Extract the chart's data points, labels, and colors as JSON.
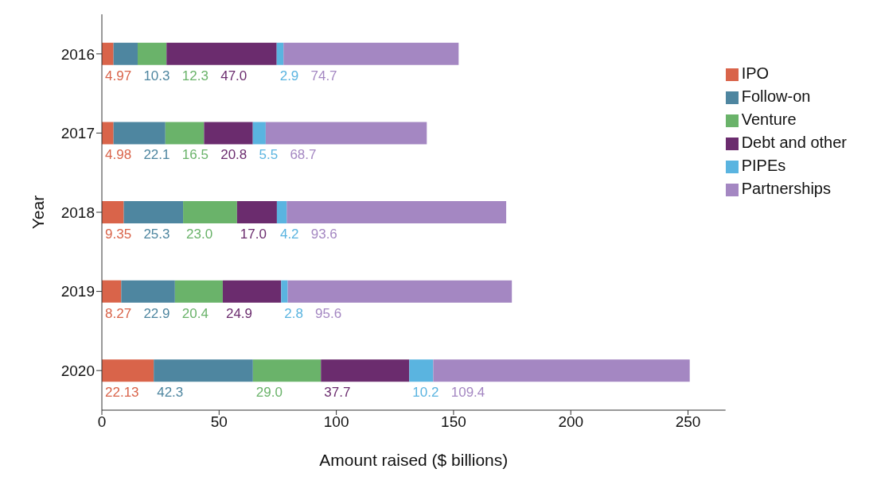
{
  "chart_data": {
    "type": "bar",
    "orientation": "horizontal",
    "stacked": true,
    "xlabel": "Amount raised ($ billions)",
    "ylabel": "Year",
    "categories": [
      "2016",
      "2017",
      "2018",
      "2019",
      "2020"
    ],
    "series": [
      {
        "name": "IPO",
        "color": "#d9644a",
        "values": [
          4.97,
          4.98,
          9.35,
          8.27,
          22.13
        ],
        "value_labels": [
          "4.97",
          "4.98",
          "9.35",
          "8.27",
          "22.13"
        ]
      },
      {
        "name": "Follow-on",
        "color": "#4e86a0",
        "values": [
          10.3,
          22.1,
          25.3,
          22.9,
          42.3
        ],
        "value_labels": [
          "10.3",
          "22.1",
          "25.3",
          "22.9",
          "42.3"
        ]
      },
      {
        "name": "Venture",
        "color": "#6ab36a",
        "values": [
          12.3,
          16.5,
          23.0,
          20.4,
          29.0
        ],
        "value_labels": [
          "12.3",
          "16.5",
          "23.0",
          "20.4",
          "29.0"
        ]
      },
      {
        "name": "Debt and other",
        "color": "#6b2c6e",
        "values": [
          47.0,
          20.8,
          17.0,
          24.9,
          37.7
        ],
        "value_labels": [
          "47.0",
          "20.8",
          "17.0",
          "24.9",
          "37.7"
        ]
      },
      {
        "name": "PIPEs",
        "color": "#5ab4e0",
        "values": [
          2.9,
          5.5,
          4.2,
          2.8,
          10.2
        ],
        "value_labels": [
          "2.9",
          "5.5",
          "4.2",
          "2.8",
          "10.2"
        ]
      },
      {
        "name": "Partnerships",
        "color": "#a487c2",
        "values": [
          74.7,
          68.7,
          93.6,
          95.6,
          109.4
        ],
        "value_labels": [
          "74.7",
          "68.7",
          "93.6",
          "95.6",
          "109.4"
        ]
      }
    ],
    "xlim": [
      0,
      266
    ],
    "xticks": [
      0,
      50,
      100,
      150,
      200,
      250
    ],
    "grid": false,
    "legend": "top right"
  }
}
